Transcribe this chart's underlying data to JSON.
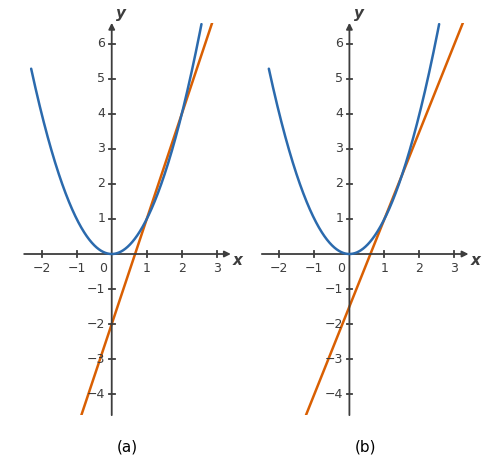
{
  "xlim": [
    -2.5,
    3.4
  ],
  "ylim": [
    -4.6,
    6.6
  ],
  "xticks": [
    -2,
    -1,
    1,
    2,
    3
  ],
  "yticks": [
    -4,
    -3,
    -2,
    -1,
    1,
    2,
    3,
    4,
    5,
    6
  ],
  "parabola_color": "#2b6aad",
  "secant_color": "#d95f02",
  "parabola_linewidth": 1.8,
  "secant_linewidth": 1.8,
  "panel_a_label": "(a)",
  "panel_b_label": "(b)",
  "secant_a_slope": 3.0,
  "secant_a_intercept": -2.0,
  "secant_b_slope": 2.5,
  "secant_b_intercept": -1.5,
  "xlabel": "x",
  "ylabel": "y",
  "axis_color": "#3d3d3d",
  "tick_label_color": "#3d3d3d",
  "background_color": "#ffffff",
  "tick_fontsize": 9,
  "label_fontsize": 11
}
